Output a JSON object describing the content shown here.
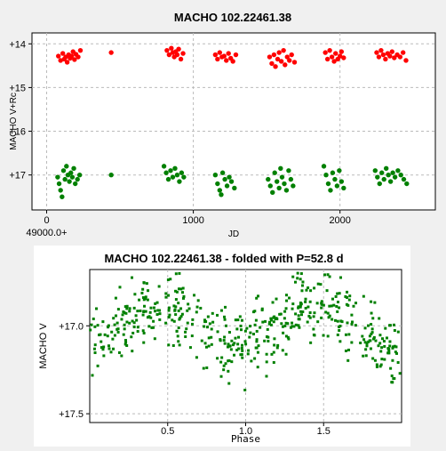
{
  "chart_data": [
    {
      "type": "scatter",
      "title": "MACHO 102.22461.38",
      "xlabel": "JD",
      "ylabel": "MACHO V+Rc",
      "x_offset_label": "49000.0+",
      "xlim": [
        -100,
        2650
      ],
      "ylim": [
        17.8,
        13.75
      ],
      "y_inverted": true,
      "xticks": [
        0,
        1000,
        2000
      ],
      "xtick_labels": [
        "0",
        "1000",
        "2000"
      ],
      "yticks": [
        14,
        15,
        16,
        17
      ],
      "ytick_labels": [
        "+14",
        "+15",
        "+16",
        "+17"
      ],
      "grid": true,
      "series": [
        {
          "color": "#ff0000",
          "points": [
            [
              80,
              14.28
            ],
            [
              95,
              14.38
            ],
            [
              110,
              14.22
            ],
            [
              120,
              14.35
            ],
            [
              130,
              14.3
            ],
            [
              140,
              14.42
            ],
            [
              150,
              14.25
            ],
            [
              160,
              14.33
            ],
            [
              170,
              14.28
            ],
            [
              180,
              14.18
            ],
            [
              190,
              14.36
            ],
            [
              200,
              14.24
            ],
            [
              215,
              14.3
            ],
            [
              230,
              14.15
            ],
            [
              440,
              14.2
            ],
            [
              820,
              14.15
            ],
            [
              835,
              14.25
            ],
            [
              850,
              14.1
            ],
            [
              860,
              14.2
            ],
            [
              870,
              14.3
            ],
            [
              880,
              14.18
            ],
            [
              890,
              14.25
            ],
            [
              900,
              14.12
            ],
            [
              915,
              14.35
            ],
            [
              930,
              14.22
            ],
            [
              1150,
              14.25
            ],
            [
              1165,
              14.35
            ],
            [
              1180,
              14.2
            ],
            [
              1195,
              14.3
            ],
            [
              1210,
              14.28
            ],
            [
              1225,
              14.38
            ],
            [
              1240,
              14.22
            ],
            [
              1255,
              14.33
            ],
            [
              1270,
              14.4
            ],
            [
              1290,
              14.25
            ],
            [
              1520,
              14.3
            ],
            [
              1535,
              14.45
            ],
            [
              1550,
              14.25
            ],
            [
              1560,
              14.52
            ],
            [
              1575,
              14.35
            ],
            [
              1585,
              14.2
            ],
            [
              1600,
              14.4
            ],
            [
              1615,
              14.15
            ],
            [
              1625,
              14.48
            ],
            [
              1640,
              14.3
            ],
            [
              1655,
              14.38
            ],
            [
              1670,
              14.25
            ],
            [
              1690,
              14.42
            ],
            [
              1900,
              14.2
            ],
            [
              1915,
              14.35
            ],
            [
              1930,
              14.15
            ],
            [
              1945,
              14.3
            ],
            [
              1960,
              14.4
            ],
            [
              1970,
              14.22
            ],
            [
              1985,
              14.35
            ],
            [
              2000,
              14.28
            ],
            [
              2010,
              14.18
            ],
            [
              2025,
              14.32
            ],
            [
              2250,
              14.2
            ],
            [
              2265,
              14.3
            ],
            [
              2280,
              14.15
            ],
            [
              2295,
              14.25
            ],
            [
              2310,
              14.35
            ],
            [
              2325,
              14.22
            ],
            [
              2340,
              14.28
            ],
            [
              2355,
              14.18
            ],
            [
              2370,
              14.32
            ],
            [
              2390,
              14.25
            ],
            [
              2410,
              14.3
            ],
            [
              2430,
              14.2
            ],
            [
              2450,
              14.38
            ]
          ]
        },
        {
          "color": "#008000",
          "points": [
            [
              75,
              17.05
            ],
            [
              85,
              17.2
            ],
            [
              95,
              17.35
            ],
            [
              105,
              17.5
            ],
            [
              115,
              16.9
            ],
            [
              125,
              17.1
            ],
            [
              135,
              16.8
            ],
            [
              145,
              17.0
            ],
            [
              155,
              17.15
            ],
            [
              165,
              16.95
            ],
            [
              175,
              17.05
            ],
            [
              185,
              16.85
            ],
            [
              195,
              17.2
            ],
            [
              210,
              17.1
            ],
            [
              225,
              17.0
            ],
            [
              440,
              17.0
            ],
            [
              800,
              16.8
            ],
            [
              815,
              16.95
            ],
            [
              830,
              17.1
            ],
            [
              845,
              16.9
            ],
            [
              860,
              17.05
            ],
            [
              875,
              16.85
            ],
            [
              890,
              17.0
            ],
            [
              905,
              17.15
            ],
            [
              920,
              16.95
            ],
            [
              935,
              17.05
            ],
            [
              1150,
              17.0
            ],
            [
              1165,
              17.2
            ],
            [
              1180,
              17.35
            ],
            [
              1190,
              17.45
            ],
            [
              1200,
              16.95
            ],
            [
              1215,
              17.1
            ],
            [
              1230,
              17.25
            ],
            [
              1245,
              17.05
            ],
            [
              1260,
              17.15
            ],
            [
              1280,
              17.3
            ],
            [
              1510,
              17.1
            ],
            [
              1525,
              17.25
            ],
            [
              1540,
              17.4
            ],
            [
              1555,
              16.95
            ],
            [
              1570,
              17.15
            ],
            [
              1585,
              17.3
            ],
            [
              1595,
              16.85
            ],
            [
              1605,
              17.05
            ],
            [
              1620,
              17.2
            ],
            [
              1635,
              17.35
            ],
            [
              1650,
              16.9
            ],
            [
              1665,
              17.1
            ],
            [
              1680,
              17.25
            ],
            [
              1890,
              16.8
            ],
            [
              1905,
              17.0
            ],
            [
              1920,
              17.2
            ],
            [
              1935,
              17.35
            ],
            [
              1950,
              16.95
            ],
            [
              1965,
              17.1
            ],
            [
              1980,
              17.25
            ],
            [
              1995,
              16.9
            ],
            [
              2010,
              17.15
            ],
            [
              2025,
              17.3
            ],
            [
              2240,
              16.9
            ],
            [
              2255,
              17.05
            ],
            [
              2270,
              17.2
            ],
            [
              2285,
              16.95
            ],
            [
              2300,
              17.1
            ],
            [
              2315,
              16.85
            ],
            [
              2330,
              17.0
            ],
            [
              2345,
              17.15
            ],
            [
              2360,
              16.95
            ],
            [
              2375,
              17.05
            ],
            [
              2395,
              16.9
            ],
            [
              2415,
              17.0
            ],
            [
              2435,
              17.1
            ],
            [
              2455,
              17.2
            ]
          ]
        }
      ]
    },
    {
      "type": "scatter",
      "title": "MACHO 102.22461.38 - folded with P=52.8 d",
      "xlabel": "Phase",
      "ylabel": "MACHO V",
      "xlim": [
        0.0,
        2.0
      ],
      "ylim": [
        17.55,
        16.68
      ],
      "y_inverted": true,
      "xticks": [
        0.5,
        1.0,
        1.5
      ],
      "xtick_labels": [
        "0.5",
        "1.0",
        "1.5"
      ],
      "yticks": [
        17.0,
        17.5
      ],
      "ytick_labels": [
        "+17.0",
        "+17.5"
      ],
      "grid": true,
      "series": [
        {
          "color": "#008000",
          "curve": {
            "mean": 17.0,
            "amplitude": 0.13,
            "period": 1.0,
            "scatter": 0.2,
            "n": 520
          }
        }
      ]
    }
  ]
}
